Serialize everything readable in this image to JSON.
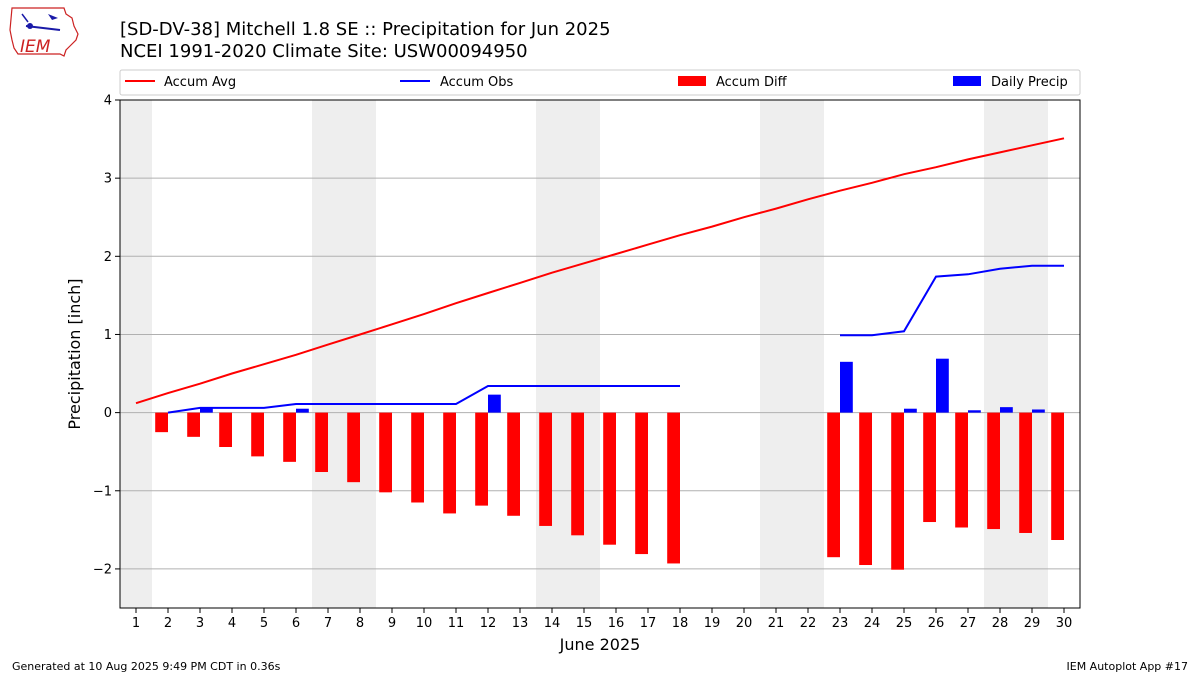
{
  "header": {
    "logo_text": "IEM",
    "title_line1": "[SD-DV-38] Mitchell 1.8 SE :: Precipitation for Jun 2025",
    "title_line2": "NCEI 1991-2020 Climate Site: USW00094950"
  },
  "legend": [
    {
      "label": "Accum Avg",
      "kind": "line",
      "color": "#ff0000"
    },
    {
      "label": "Accum Obs",
      "kind": "line",
      "color": "#0000ff"
    },
    {
      "label": "Accum Diff",
      "kind": "bar",
      "color": "#ff0000"
    },
    {
      "label": "Daily Precip",
      "kind": "bar",
      "color": "#0000ff"
    }
  ],
  "footer": {
    "left": "Generated at 10 Aug 2025 9:49 PM CDT in 0.36s",
    "right": "IEM Autoplot App #17"
  },
  "chart_data": {
    "type": "bar",
    "xlabel": "June 2025",
    "ylabel": "Precipitation [inch]",
    "xlim": [
      0.5,
      30.5
    ],
    "ylim": [
      -2.5,
      4
    ],
    "yticks": [
      -2,
      -1,
      0,
      1,
      2,
      3,
      4
    ],
    "grid": "horizontal",
    "legend_position": "top",
    "days": [
      1,
      2,
      3,
      4,
      5,
      6,
      7,
      8,
      9,
      10,
      11,
      12,
      13,
      14,
      15,
      16,
      17,
      18,
      19,
      20,
      21,
      22,
      23,
      24,
      25,
      26,
      27,
      28,
      29,
      30
    ],
    "weekend_shading": [
      [
        0.5,
        1.5
      ],
      [
        6.5,
        8.5
      ],
      [
        13.5,
        15.5
      ],
      [
        20.5,
        22.5
      ],
      [
        27.5,
        29.5
      ]
    ],
    "series": [
      {
        "name": "Accum Avg",
        "kind": "line",
        "color": "#ff0000",
        "values": [
          0.12,
          0.25,
          0.37,
          0.5,
          0.62,
          0.74,
          0.87,
          1.0,
          1.13,
          1.26,
          1.4,
          1.53,
          1.66,
          1.79,
          1.91,
          2.03,
          2.15,
          2.27,
          2.38,
          2.5,
          2.61,
          2.73,
          2.84,
          2.94,
          3.05,
          3.14,
          3.24,
          3.33,
          3.42,
          3.51
        ]
      },
      {
        "name": "Accum Obs",
        "kind": "line",
        "color": "#0000ff",
        "values": [
          null,
          0.0,
          0.06,
          0.06,
          0.06,
          0.11,
          0.11,
          0.11,
          0.11,
          0.11,
          0.11,
          0.34,
          0.34,
          0.34,
          0.34,
          0.34,
          0.34,
          0.34,
          null,
          null,
          null,
          null,
          0.99,
          0.99,
          1.04,
          1.74,
          1.77,
          1.84,
          1.88,
          1.88
        ]
      },
      {
        "name": "Accum Diff",
        "kind": "bar",
        "color": "#ff0000",
        "values": [
          null,
          -0.25,
          -0.31,
          -0.44,
          -0.56,
          -0.63,
          -0.76,
          -0.89,
          -1.02,
          -1.15,
          -1.29,
          -1.19,
          -1.32,
          -1.45,
          -1.57,
          -1.69,
          -1.81,
          -1.93,
          null,
          null,
          null,
          null,
          -1.85,
          -1.95,
          -2.01,
          -1.4,
          -1.47,
          -1.49,
          -1.54,
          -1.63
        ]
      },
      {
        "name": "Daily Precip",
        "kind": "bar",
        "color": "#0000ff",
        "values": [
          null,
          0.0,
          0.06,
          0.0,
          0.0,
          0.05,
          0.0,
          0.0,
          0.0,
          0.0,
          0.0,
          0.23,
          0.0,
          0.0,
          0.0,
          0.0,
          0.0,
          0.0,
          null,
          null,
          null,
          null,
          0.65,
          0.0,
          0.05,
          0.69,
          0.03,
          0.07,
          0.04,
          0.0
        ]
      }
    ]
  }
}
